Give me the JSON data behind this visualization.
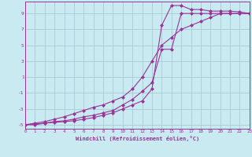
{
  "bg_color": "#c8eaf0",
  "grid_color": "#a8ccd4",
  "line_color": "#993399",
  "marker_style": "D",
  "marker_size": 2,
  "line_width": 0.8,
  "xlabel": "Windchill (Refroidissement éolien,°C)",
  "xlim": [
    0,
    23
  ],
  "ylim": [
    -5.5,
    10.5
  ],
  "xticks": [
    0,
    1,
    2,
    3,
    4,
    5,
    6,
    7,
    8,
    9,
    10,
    11,
    12,
    13,
    14,
    15,
    16,
    17,
    18,
    19,
    20,
    21,
    22,
    23
  ],
  "yticks": [
    -5,
    -3,
    -1,
    1,
    3,
    5,
    7,
    9
  ],
  "series_x": [
    [
      0,
      1,
      2,
      3,
      4,
      5,
      6,
      7,
      8,
      9,
      10,
      11,
      12,
      13,
      14,
      15,
      16,
      17,
      18,
      19,
      20,
      21,
      22,
      23
    ],
    [
      0,
      1,
      2,
      3,
      4,
      5,
      6,
      7,
      8,
      9,
      10,
      11,
      12,
      13,
      14,
      15,
      16,
      17,
      18,
      19,
      20,
      21,
      22,
      23
    ],
    [
      0,
      1,
      2,
      3,
      4,
      5,
      6,
      7,
      8,
      9,
      10,
      11,
      12,
      13,
      14,
      15,
      16,
      17,
      18,
      19,
      20,
      21,
      22,
      23
    ]
  ],
  "series_y": [
    [
      -5,
      -5,
      -4.8,
      -4.7,
      -4.6,
      -4.5,
      -4.3,
      -4.1,
      -3.8,
      -3.5,
      -3,
      -2.5,
      -2.0,
      -0.5,
      7.5,
      10,
      10,
      9.5,
      9.5,
      9.3,
      9.3,
      9.3,
      9.2,
      9.0
    ],
    [
      -5,
      -4.9,
      -4.8,
      -4.6,
      -4.5,
      -4.3,
      -4.0,
      -3.8,
      -3.5,
      -3.2,
      -2.5,
      -1.8,
      -0.8,
      0.3,
      4.5,
      4.5,
      9.0,
      9.0,
      9.0,
      9.0,
      9.0,
      9.0,
      9.0,
      9.0
    ],
    [
      -5,
      -4.8,
      -4.6,
      -4.3,
      -4.0,
      -3.6,
      -3.2,
      -2.8,
      -2.5,
      -2,
      -1.5,
      -0.5,
      1.0,
      3.0,
      5.0,
      6.0,
      7.0,
      7.5,
      8.0,
      8.5,
      9.0,
      9.0,
      9.0,
      9.0
    ]
  ]
}
